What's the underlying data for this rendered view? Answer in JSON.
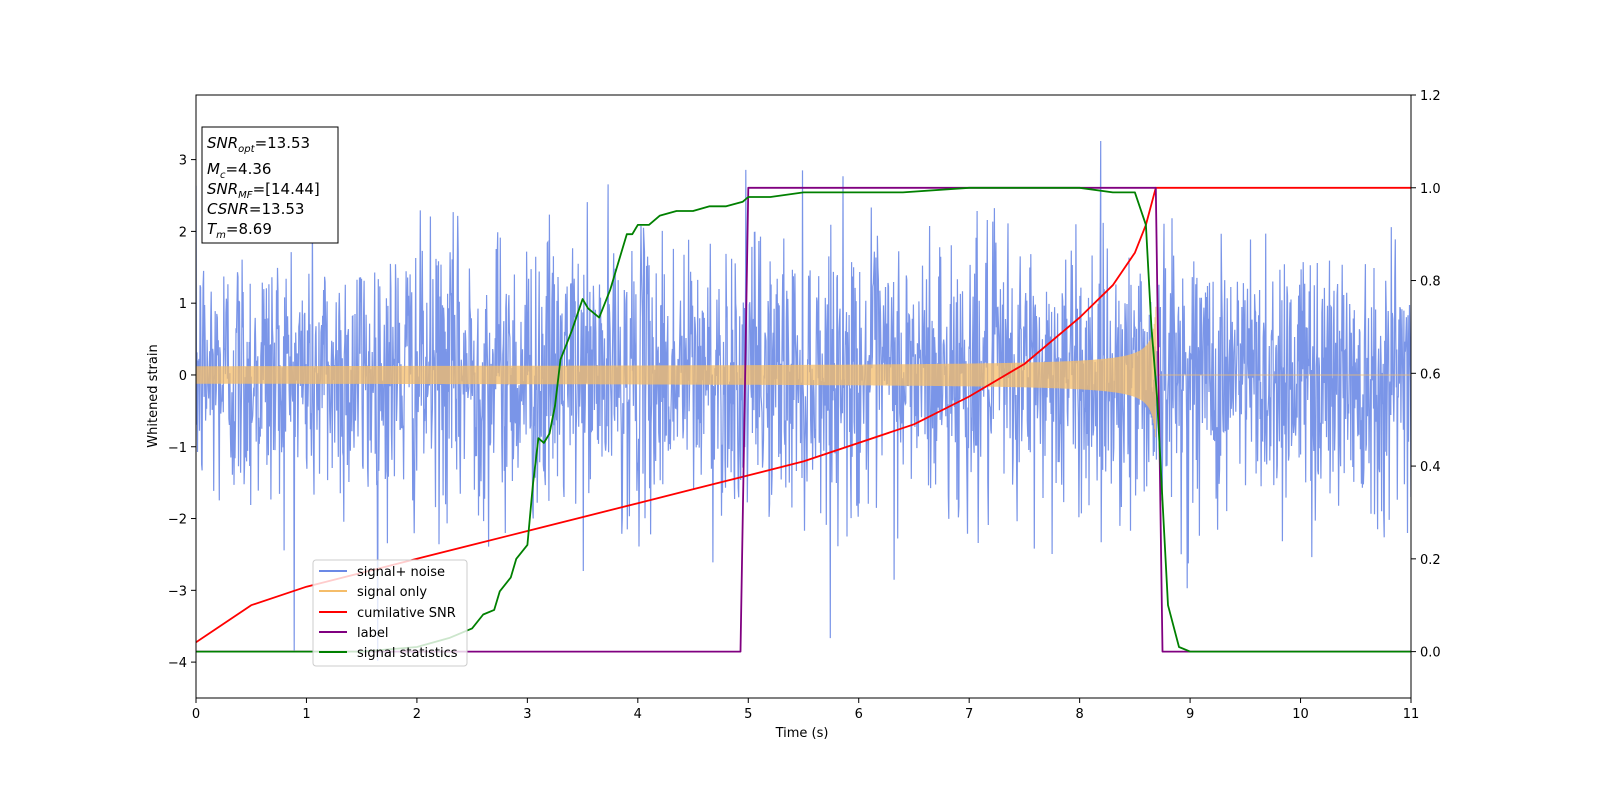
{
  "chart_data": {
    "type": "line",
    "title": "",
    "xlabel": "Time (s)",
    "ylabel": "Whitened strain",
    "xlim": [
      0,
      11
    ],
    "ylim_left": [
      -4.5,
      3.9
    ],
    "ylim_right": [
      -0.1,
      1.2
    ],
    "x_ticks": [
      0,
      1,
      2,
      3,
      4,
      5,
      6,
      7,
      8,
      9,
      10,
      11
    ],
    "y_left_ticks": [
      -4,
      -3,
      -2,
      -1,
      0,
      1,
      2,
      3
    ],
    "y_right_ticks": [
      0.0,
      0.2,
      0.4,
      0.6,
      0.8,
      1.0,
      1.2
    ],
    "grid": false,
    "legend_position": "lower-left",
    "series": [
      {
        "name": "signal+ noise",
        "axis": "left",
        "color": "#6b89e6",
        "style": "dense noise, roughly ±2.3 with spikes to about 3.5 and -4.2",
        "noise_sigma": 0.95,
        "peak_max": 3.52,
        "peak_min": -4.2
      },
      {
        "name": "signal only",
        "axis": "left",
        "color": "#f5bd6a",
        "style": "chirp with growing amplitude, ending at merger",
        "envelope_start": 0.1,
        "envelope_peak": 0.95,
        "merger_time": 8.69
      },
      {
        "name": "cumilative SNR",
        "axis": "right",
        "color": "#ff0000",
        "x": [
          0,
          0.5,
          1,
          1.5,
          2,
          2.5,
          3,
          3.5,
          4,
          4.5,
          5,
          5.5,
          6,
          6.5,
          7,
          7.5,
          8,
          8.3,
          8.5,
          8.6,
          8.69,
          8.75,
          11
        ],
        "y": [
          0.02,
          0.1,
          0.14,
          0.17,
          0.2,
          0.23,
          0.26,
          0.29,
          0.32,
          0.35,
          0.38,
          0.41,
          0.45,
          0.49,
          0.55,
          0.62,
          0.72,
          0.79,
          0.86,
          0.92,
          1.0,
          1.0,
          1.0
        ]
      },
      {
        "name": "label",
        "axis": "right",
        "color": "#800080",
        "x": [
          0,
          4.93,
          5.0,
          8.69,
          8.75,
          11
        ],
        "y": [
          0,
          0,
          1,
          1,
          0,
          0
        ]
      },
      {
        "name": "signal statistics",
        "axis": "right",
        "color": "#008000",
        "x": [
          0,
          1.5,
          2.0,
          2.3,
          2.5,
          2.6,
          2.7,
          2.75,
          2.85,
          2.9,
          3.0,
          3.05,
          3.1,
          3.15,
          3.2,
          3.25,
          3.3,
          3.4,
          3.5,
          3.55,
          3.65,
          3.75,
          3.9,
          3.95,
          4.0,
          4.1,
          4.2,
          4.35,
          4.5,
          4.65,
          4.8,
          4.95,
          5.0,
          5.2,
          5.5,
          5.9,
          6.4,
          7.0,
          7.5,
          8.0,
          8.3,
          8.5,
          8.6,
          8.65,
          8.7,
          8.8,
          8.9,
          9.0,
          9.2,
          11
        ],
        "y": [
          0.0,
          0.0,
          0.01,
          0.03,
          0.05,
          0.08,
          0.09,
          0.13,
          0.16,
          0.2,
          0.23,
          0.36,
          0.46,
          0.45,
          0.47,
          0.53,
          0.63,
          0.69,
          0.76,
          0.74,
          0.72,
          0.78,
          0.9,
          0.9,
          0.92,
          0.92,
          0.94,
          0.95,
          0.95,
          0.96,
          0.96,
          0.97,
          0.98,
          0.98,
          0.99,
          0.99,
          0.99,
          1.0,
          1.0,
          1.0,
          0.99,
          0.99,
          0.92,
          0.7,
          0.55,
          0.1,
          0.01,
          0.0,
          0.0,
          0.0
        ]
      }
    ]
  },
  "info_box": {
    "snr_opt": "=13.53",
    "mc": "=4.36",
    "snr_mf": "=[14.44]",
    "csnr": "=13.53",
    "tm": "=8.69"
  }
}
